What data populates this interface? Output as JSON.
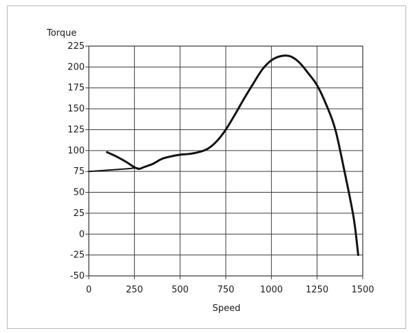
{
  "chart_data": {
    "type": "line",
    "title": "",
    "xlabel": "Speed",
    "ylabel": "Torque",
    "xlim": [
      0,
      1500
    ],
    "ylim": [
      -50,
      225
    ],
    "xticks": [
      0,
      250,
      500,
      750,
      1000,
      1250,
      1500
    ],
    "yticks": [
      -50,
      -25,
      0,
      25,
      50,
      75,
      100,
      125,
      150,
      175,
      200,
      225
    ],
    "xtick_labels": [
      "0",
      "250",
      "500",
      "750",
      "1000",
      "1250",
      "1500"
    ],
    "ytick_labels": [
      "-50",
      "-25",
      "0",
      "25",
      "50",
      "75",
      "100",
      "125",
      "150",
      "175",
      "200",
      "225"
    ],
    "grid": true,
    "line_color": "#111111",
    "series": [
      {
        "x": [
          0,
          100,
          200,
          250,
          270
        ],
        "y": [
          75,
          76.5,
          78,
          79,
          79
        ]
      },
      {
        "x": [
          100,
          150,
          200,
          250,
          275,
          300,
          350,
          400,
          450,
          500,
          550,
          600,
          650,
          700,
          750,
          800,
          850,
          900,
          950,
          1000,
          1050,
          1100,
          1150,
          1200,
          1250,
          1300,
          1350,
          1400,
          1450,
          1475
        ],
        "y": [
          98,
          93,
          87,
          80,
          78,
          80,
          84,
          90,
          93,
          95,
          96,
          98,
          102,
          111,
          125,
          143,
          162,
          180,
          197,
          208,
          213,
          213,
          206,
          193,
          178,
          155,
          125,
          75,
          20,
          -25
        ]
      }
    ]
  }
}
